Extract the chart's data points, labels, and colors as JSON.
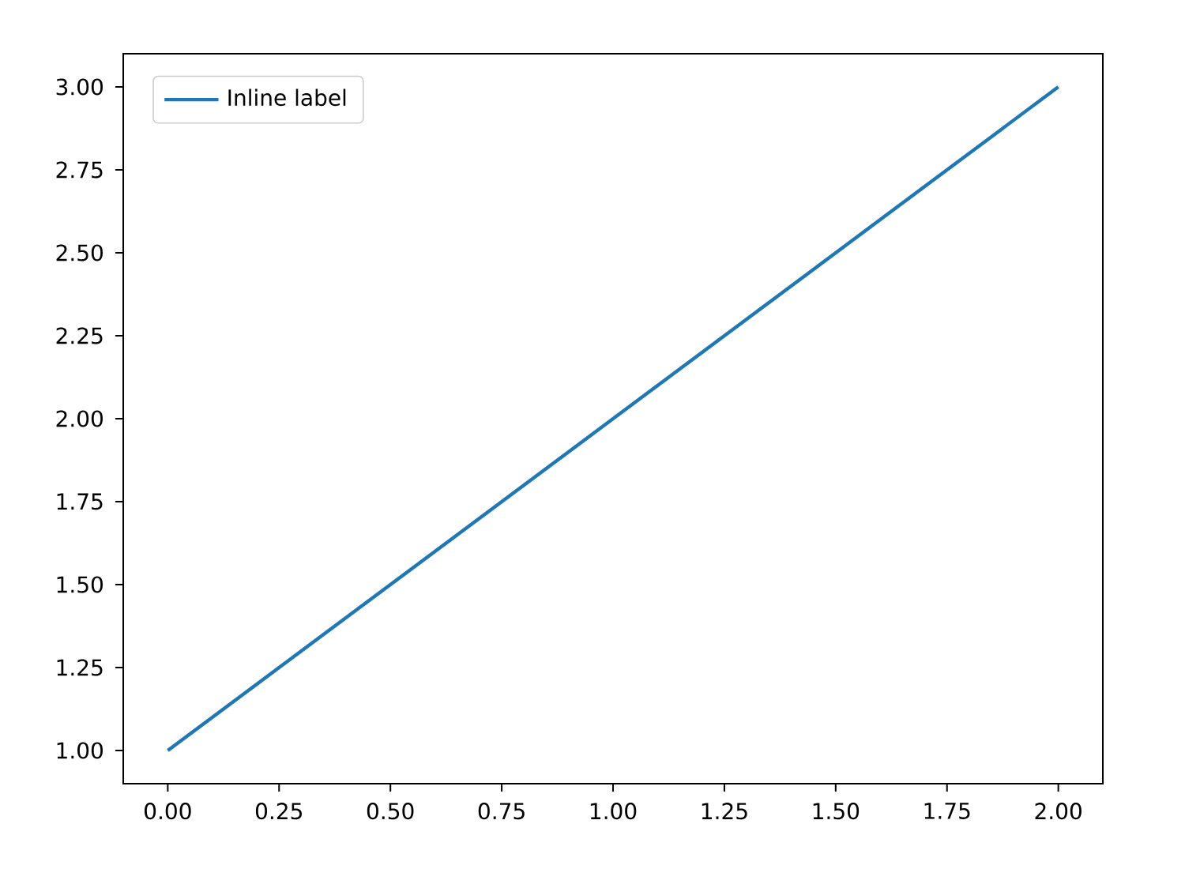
{
  "chart_data": {
    "type": "line",
    "x": [
      0,
      1,
      2
    ],
    "series": [
      {
        "name": "Inline label",
        "color": "#1f77b4",
        "values": [
          1,
          2,
          3
        ]
      }
    ],
    "xlim": [
      -0.1,
      2.1
    ],
    "ylim": [
      0.9,
      3.1
    ],
    "xticks": [
      {
        "value": 0,
        "label": "0.00"
      },
      {
        "value": 0.25,
        "label": "0.25"
      },
      {
        "value": 0.5,
        "label": "0.50"
      },
      {
        "value": 0.75,
        "label": "0.75"
      },
      {
        "value": 1,
        "label": "1.00"
      },
      {
        "value": 1.25,
        "label": "1.25"
      },
      {
        "value": 1.5,
        "label": "1.50"
      },
      {
        "value": 1.75,
        "label": "1.75"
      },
      {
        "value": 2,
        "label": "2.00"
      }
    ],
    "yticks": [
      {
        "value": 1,
        "label": "1.00"
      },
      {
        "value": 1.25,
        "label": "1.25"
      },
      {
        "value": 1.5,
        "label": "1.50"
      },
      {
        "value": 1.75,
        "label": "1.75"
      },
      {
        "value": 2,
        "label": "2.00"
      },
      {
        "value": 2.25,
        "label": "2.25"
      },
      {
        "value": 2.5,
        "label": "2.50"
      },
      {
        "value": 2.75,
        "label": "2.75"
      },
      {
        "value": 3,
        "label": "3.00"
      }
    ],
    "legend": "top left",
    "marker": "none",
    "line_style": "solid"
  }
}
